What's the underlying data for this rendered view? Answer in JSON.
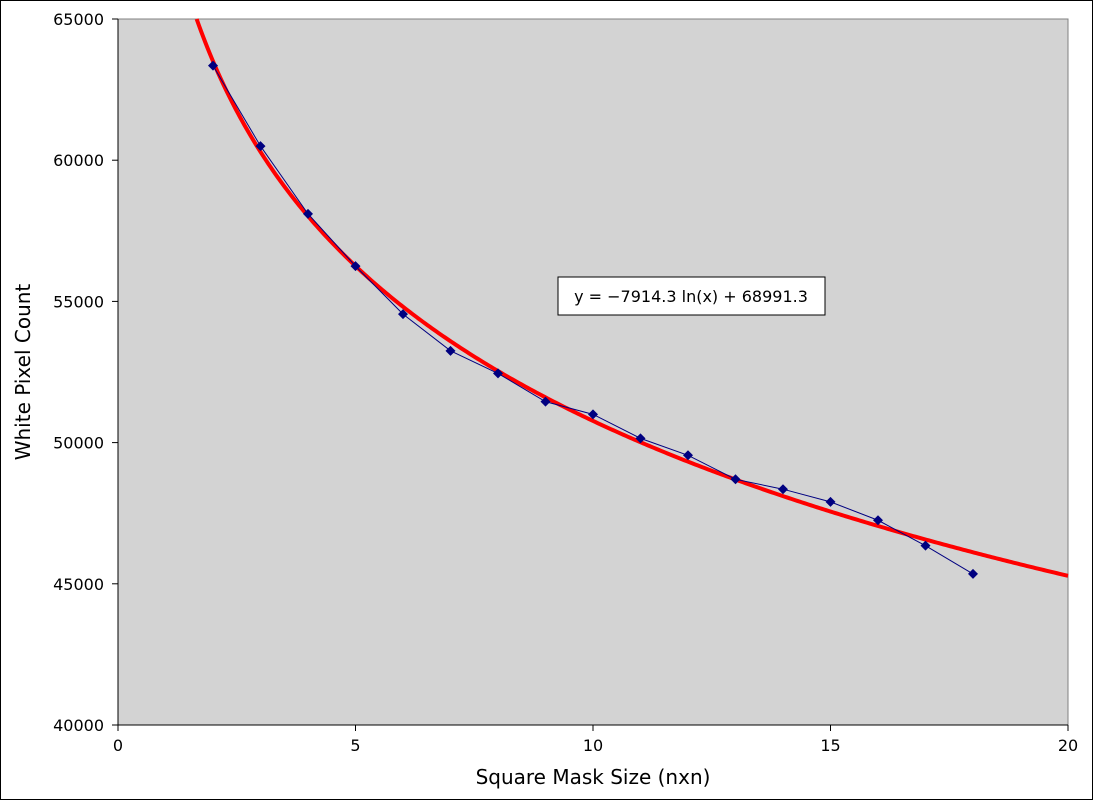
{
  "chart_data": {
    "type": "scatter",
    "xlabel": "Square Mask Size (nxn)",
    "ylabel": "White Pixel Count",
    "xlim": [
      0,
      20
    ],
    "ylim": [
      40000,
      65000
    ],
    "x_ticks": [
      0,
      5,
      10,
      15,
      20
    ],
    "y_ticks": [
      40000,
      45000,
      50000,
      55000,
      60000,
      65000
    ],
    "x_tick_labels": [
      "0",
      "5",
      "10",
      "15",
      "20"
    ],
    "y_tick_labels": [
      "40000",
      "45000",
      "50000",
      "55000",
      "60000",
      "65000"
    ],
    "grid": false,
    "series": [
      {
        "x": [
          2,
          3,
          4,
          5,
          6,
          7,
          8,
          9,
          10,
          11,
          12,
          13,
          14,
          15,
          16,
          17,
          18
        ],
        "y": [
          63350,
          60500,
          58100,
          56250,
          54550,
          53250,
          52450,
          51450,
          51000,
          50150,
          49550,
          48700,
          48350,
          47900,
          47250,
          46350,
          45350
        ],
        "marker": "diamond",
        "color": "#000080",
        "connected": true
      }
    ],
    "trendline": {
      "type": "logarithmic",
      "a": -7914.3,
      "b": 68991.3,
      "color": "#ff0000",
      "equation_label": "y = −7914.3 ln(x) + 68991.3"
    },
    "colors": {
      "plot_background": "#d3d3d3",
      "series": "#000080",
      "trendline": "#ff0000"
    }
  }
}
